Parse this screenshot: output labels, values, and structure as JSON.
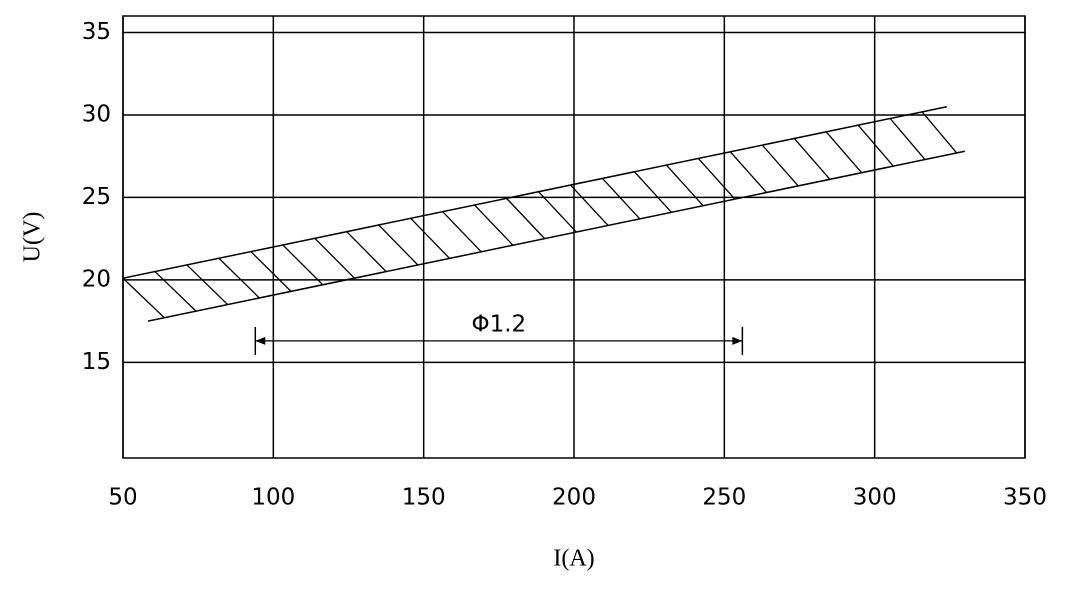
{
  "chart_data": {
    "type": "line",
    "xlabel": "I(A)",
    "ylabel": "U(V)",
    "xlim": [
      50,
      350
    ],
    "xticks": [
      50,
      100,
      150,
      200,
      250,
      300,
      350
    ],
    "ylim": [
      9.2,
      36
    ],
    "yticks": [
      15,
      20,
      25,
      30,
      35
    ],
    "grid": true,
    "series": [
      {
        "color": "#000000",
        "x": [
          50,
          324
        ],
        "values": [
          20.1,
          30.5
        ]
      },
      {
        "color": "#000000",
        "x": [
          58.3,
          330
        ],
        "values": [
          17.5,
          27.8
        ]
      }
    ],
    "hatched_band": true,
    "annotation": {
      "text": "Φ1.2",
      "x": [
        94,
        256
      ],
      "y": 16.3
    }
  }
}
